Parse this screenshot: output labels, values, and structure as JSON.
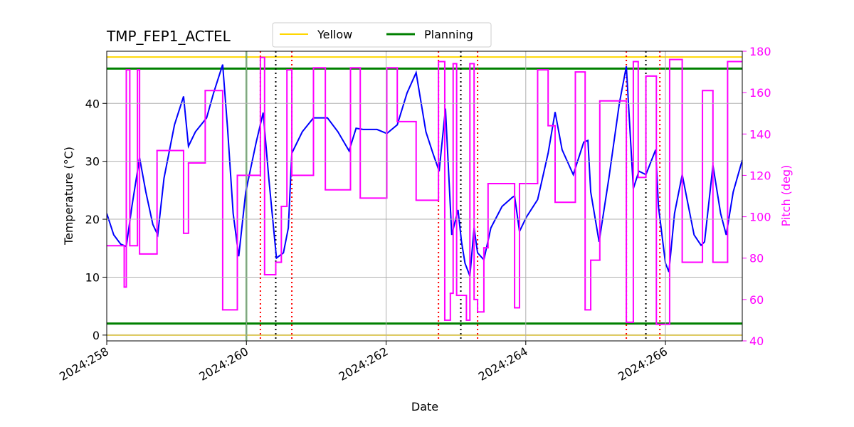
{
  "chart_data": {
    "type": "line",
    "title": "TMP_FEP1_ACTEL",
    "xlabel": "Date",
    "ylabel": "Temperature (°C)",
    "y2label": "Pitch (deg)",
    "xlim": [
      258,
      267.1
    ],
    "xticks": [
      {
        "value": 258,
        "label": "2024:258"
      },
      {
        "value": 260,
        "label": "2024:260"
      },
      {
        "value": 262,
        "label": "2024:262"
      },
      {
        "value": 264,
        "label": "2024:264"
      },
      {
        "value": 266,
        "label": "2024:266"
      }
    ],
    "ylim": [
      -1,
      49
    ],
    "yticks": [
      0,
      10,
      20,
      30,
      40
    ],
    "y2lim": [
      40,
      180
    ],
    "y2ticks": [
      40,
      60,
      80,
      100,
      120,
      140,
      160,
      180
    ],
    "y2color": "magenta",
    "grid": true,
    "legend": "above",
    "series": [
      {
        "color": "blue",
        "x": [
          258.0,
          258.1,
          258.2,
          258.28,
          258.36,
          258.47,
          258.56,
          258.66,
          258.73,
          258.82,
          258.97,
          259.1,
          259.17,
          259.27,
          259.43,
          259.53,
          259.66,
          259.73,
          259.81,
          259.89,
          259.99,
          260.14,
          260.24,
          260.32,
          260.43,
          260.53,
          260.6,
          260.65,
          260.8,
          260.96,
          261.11,
          261.16,
          261.31,
          261.47,
          261.57,
          261.67,
          261.87,
          262.01,
          262.16,
          262.3,
          262.43,
          262.57,
          262.67,
          262.76,
          262.85,
          262.94,
          263.03,
          263.08,
          263.13,
          263.2,
          263.26,
          263.31,
          263.4,
          263.5,
          263.66,
          263.81,
          263.84,
          263.91,
          264.01,
          264.17,
          264.32,
          264.42,
          264.52,
          264.68,
          264.83,
          264.89,
          264.93,
          265.05,
          265.19,
          265.34,
          265.44,
          265.54,
          265.62,
          265.72,
          265.86,
          265.9,
          266.0,
          266.05,
          266.13,
          266.24,
          266.31,
          266.41,
          266.51,
          266.56,
          266.68,
          266.79,
          266.87,
          266.97,
          267.1
        ],
        "values": [
          21.0,
          17.3,
          15.7,
          15.3,
          22.2,
          30.6,
          24.7,
          19.1,
          17.3,
          27.1,
          36.3,
          41.2,
          32.6,
          35.1,
          37.5,
          41.8,
          46.7,
          35.7,
          21.0,
          13.6,
          24.7,
          33.3,
          38.4,
          27.1,
          13.3,
          14.2,
          18.5,
          31.4,
          35.1,
          37.5,
          37.5,
          37.5,
          35.1,
          31.8,
          35.7,
          35.5,
          35.5,
          34.8,
          36.3,
          41.8,
          45.3,
          35.1,
          31.4,
          28.3,
          39.1,
          17.3,
          21.6,
          16.1,
          12.4,
          10.2,
          18.5,
          14.2,
          13.0,
          18.5,
          22.2,
          23.8,
          24.0,
          17.9,
          20.4,
          23.4,
          31.4,
          38.5,
          32.0,
          27.7,
          33.3,
          33.6,
          24.7,
          16.1,
          27.1,
          40.0,
          46.4,
          25.3,
          28.3,
          27.7,
          32.0,
          22.2,
          12.4,
          10.9,
          21.0,
          27.7,
          23.4,
          17.3,
          15.5,
          16.1,
          29.3,
          21.0,
          17.3,
          24.7,
          30.2
        ]
      },
      {
        "color": "magenta",
        "axis": "y2",
        "drawstyle": "steps-post",
        "x": [
          258.0,
          258.25,
          258.28,
          258.33,
          258.44,
          258.47,
          258.72,
          259.1,
          259.17,
          259.41,
          259.66,
          259.87,
          260.2,
          260.26,
          260.42,
          260.5,
          260.58,
          260.65,
          260.96,
          261.13,
          261.49,
          261.63,
          262.01,
          262.16,
          262.43,
          262.75,
          262.84,
          262.92,
          262.96,
          263.01,
          263.15,
          263.2,
          263.26,
          263.31,
          263.4,
          263.46,
          263.84,
          263.91,
          264.17,
          264.32,
          264.42,
          264.71,
          264.85,
          264.93,
          265.06,
          265.44,
          265.54,
          265.61,
          265.72,
          265.87,
          266.06,
          266.24,
          266.53,
          266.68,
          266.89,
          267.1
        ],
        "values": [
          86,
          66,
          171,
          86,
          171,
          82,
          132,
          92,
          126,
          161,
          55,
          120,
          177,
          72,
          78,
          105,
          171,
          120,
          172,
          113,
          172,
          109,
          172,
          146,
          108,
          175,
          50,
          63,
          174,
          62,
          50,
          174,
          60,
          54,
          85,
          116,
          56,
          116,
          171,
          144,
          107,
          170,
          55,
          79,
          156,
          49,
          175,
          119,
          168,
          48,
          176,
          78,
          161,
          78,
          175,
          175
        ]
      }
    ],
    "hlines": [
      {
        "name": "Yellow",
        "color": "gold",
        "values": [
          48,
          0
        ]
      },
      {
        "name": "Planning",
        "color": "green",
        "values": [
          46,
          2
        ]
      }
    ],
    "vlines": [
      {
        "color": "green",
        "style": "solid",
        "x": [
          260.0
        ]
      },
      {
        "color": "red",
        "style": "dotted",
        "x": [
          260.2,
          260.65,
          262.75,
          263.31,
          265.44,
          265.92
        ]
      },
      {
        "color": "black",
        "style": "dotted",
        "x": [
          260.42,
          263.07,
          265.72
        ]
      }
    ]
  }
}
